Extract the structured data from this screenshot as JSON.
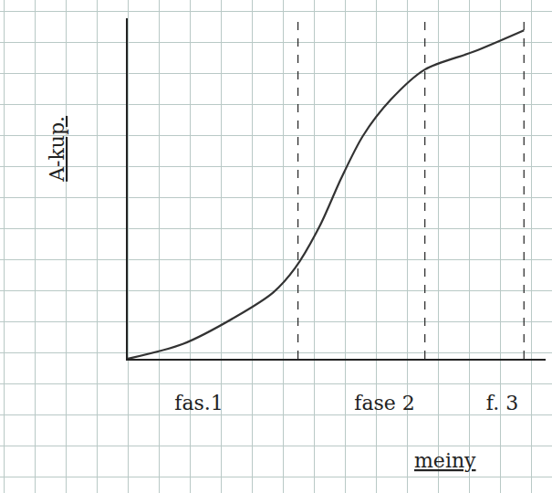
{
  "chart_data": {
    "type": "line",
    "ylabel": "A-kup.",
    "xlabel": "meiny",
    "x": [
      0,
      1.8,
      3.5,
      4.7,
      5.4,
      6.2,
      6.9,
      7.6,
      8.5,
      9.6,
      11.2,
      12.8
    ],
    "values": [
      0,
      0.5,
      1.4,
      2.2,
      3.0,
      4.4,
      6.0,
      7.4,
      8.6,
      9.6,
      10.2,
      10.9
    ],
    "color": "#333333",
    "line_style": "solid",
    "xlim": [
      0,
      13.5
    ],
    "ylim": [
      0,
      11.3
    ],
    "xticks": [
      {
        "value": 2.3,
        "label": "fas.1"
      },
      {
        "value": 8.3,
        "label": "fase 2"
      },
      {
        "value": 12.1,
        "label": "f. 3"
      }
    ],
    "yticks": [],
    "phase_bounds": [
      5.5,
      9.6,
      12.8
    ],
    "tick_labels": "x",
    "grid": false
  }
}
